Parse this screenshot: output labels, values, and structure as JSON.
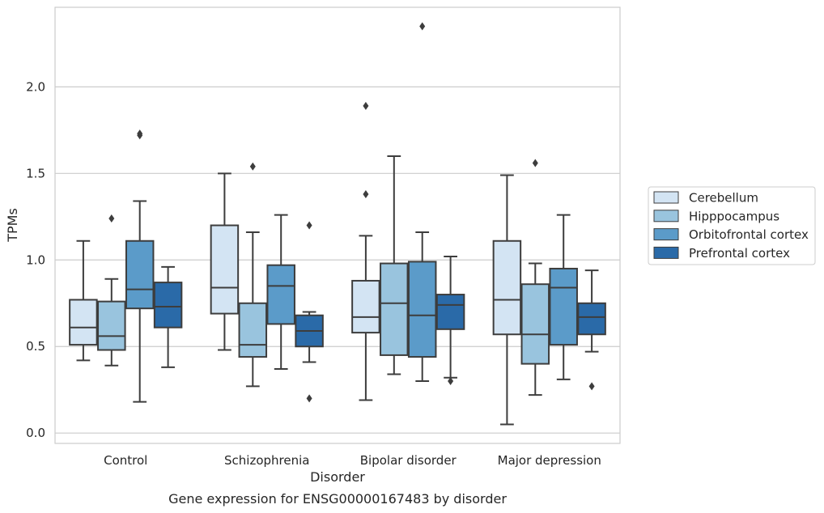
{
  "chart_data": {
    "type": "boxplot",
    "title": "Gene expression for ENSG00000167483 by disorder",
    "xlabel": "Disorder",
    "ylabel": "TPMs",
    "categories": [
      "Control",
      "Schizophrenia",
      "Bipolar disorder",
      "Major depression"
    ],
    "ylim": [
      -0.06,
      2.46
    ],
    "yticks": [
      "0.0",
      "0.5",
      "1.0",
      "1.5",
      "2.0"
    ],
    "grid": "horizontal",
    "legend_position": "right",
    "series": [
      {
        "name": "Cerebellum",
        "color": "#d3e4f3",
        "boxes": [
          {
            "whisker_low": 0.42,
            "q1": 0.51,
            "median": 0.61,
            "q3": 0.77,
            "whisker_high": 1.11,
            "outliers": []
          },
          {
            "whisker_low": 0.48,
            "q1": 0.69,
            "median": 0.84,
            "q3": 1.2,
            "whisker_high": 1.5,
            "outliers": []
          },
          {
            "whisker_low": 0.19,
            "q1": 0.58,
            "median": 0.67,
            "q3": 0.88,
            "whisker_high": 1.14,
            "outliers": [
              1.38,
              1.89
            ]
          },
          {
            "whisker_low": 0.05,
            "q1": 0.57,
            "median": 0.77,
            "q3": 1.11,
            "whisker_high": 1.49,
            "outliers": []
          }
        ]
      },
      {
        "name": "Hipppocampus",
        "color": "#99c4de",
        "boxes": [
          {
            "whisker_low": 0.39,
            "q1": 0.48,
            "median": 0.56,
            "q3": 0.76,
            "whisker_high": 0.89,
            "outliers": [
              1.24
            ]
          },
          {
            "whisker_low": 0.27,
            "q1": 0.44,
            "median": 0.51,
            "q3": 0.75,
            "whisker_high": 1.16,
            "outliers": [
              1.54
            ]
          },
          {
            "whisker_low": 0.34,
            "q1": 0.45,
            "median": 0.75,
            "q3": 0.98,
            "whisker_high": 1.6,
            "outliers": []
          },
          {
            "whisker_low": 0.22,
            "q1": 0.4,
            "median": 0.57,
            "q3": 0.86,
            "whisker_high": 0.98,
            "outliers": [
              1.56
            ]
          }
        ]
      },
      {
        "name": "Orbitofrontal cortex",
        "color": "#5b9bc9",
        "boxes": [
          {
            "whisker_low": 0.18,
            "q1": 0.72,
            "median": 0.83,
            "q3": 1.11,
            "whisker_high": 1.34,
            "outliers": [
              1.72,
              1.73
            ]
          },
          {
            "whisker_low": 0.37,
            "q1": 0.63,
            "median": 0.85,
            "q3": 0.97,
            "whisker_high": 1.26,
            "outliers": []
          },
          {
            "whisker_low": 0.3,
            "q1": 0.44,
            "median": 0.68,
            "q3": 0.99,
            "whisker_high": 1.16,
            "outliers": [
              2.35
            ]
          },
          {
            "whisker_low": 0.31,
            "q1": 0.51,
            "median": 0.84,
            "q3": 0.95,
            "whisker_high": 1.26,
            "outliers": []
          }
        ]
      },
      {
        "name": "Prefrontal cortex",
        "color": "#2a6aa8",
        "boxes": [
          {
            "whisker_low": 0.38,
            "q1": 0.61,
            "median": 0.73,
            "q3": 0.87,
            "whisker_high": 0.96,
            "outliers": []
          },
          {
            "whisker_low": 0.41,
            "q1": 0.5,
            "median": 0.59,
            "q3": 0.68,
            "whisker_high": 0.7,
            "outliers": [
              0.2,
              1.2
            ]
          },
          {
            "whisker_low": 0.32,
            "q1": 0.6,
            "median": 0.74,
            "q3": 0.8,
            "whisker_high": 1.02,
            "outliers": [
              0.3
            ]
          },
          {
            "whisker_low": 0.47,
            "q1": 0.57,
            "median": 0.67,
            "q3": 0.75,
            "whisker_high": 0.94,
            "outliers": [
              0.27
            ]
          }
        ]
      }
    ]
  }
}
